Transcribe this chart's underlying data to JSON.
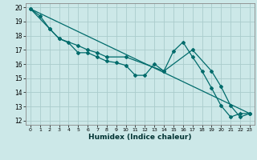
{
  "xlabel": "Humidex (Indice chaleur)",
  "bg_color": "#cce8e8",
  "grid_color": "#aacccc",
  "line_color": "#006b6b",
  "xlim": [
    -0.5,
    23.5
  ],
  "ylim": [
    11.7,
    20.3
  ],
  "xticks": [
    0,
    1,
    2,
    3,
    4,
    5,
    6,
    7,
    8,
    9,
    10,
    11,
    12,
    13,
    14,
    15,
    16,
    17,
    18,
    19,
    20,
    21,
    22,
    23
  ],
  "yticks": [
    12,
    13,
    14,
    15,
    16,
    17,
    18,
    19,
    20
  ],
  "line1_x": [
    0,
    1,
    2,
    3,
    4,
    5,
    6,
    7,
    8,
    9,
    10,
    11,
    12,
    13,
    14,
    15,
    16,
    17,
    18,
    19,
    20,
    21,
    22,
    23
  ],
  "line1_y": [
    19.9,
    19.4,
    18.5,
    17.8,
    17.5,
    16.8,
    16.8,
    16.5,
    16.2,
    16.1,
    15.9,
    15.2,
    15.2,
    16.0,
    15.5,
    16.9,
    17.55,
    16.5,
    15.5,
    14.3,
    13.05,
    12.25,
    12.5,
    12.5
  ],
  "line2_x": [
    0,
    2,
    3,
    5,
    6,
    7,
    8,
    10,
    14,
    17,
    19,
    20,
    21,
    22,
    23
  ],
  "line2_y": [
    19.9,
    18.5,
    17.8,
    17.3,
    17.0,
    16.8,
    16.5,
    16.5,
    15.5,
    17.0,
    15.5,
    14.4,
    13.05,
    12.25,
    12.5
  ],
  "line3_x": [
    0,
    23
  ],
  "line3_y": [
    19.9,
    12.5
  ]
}
